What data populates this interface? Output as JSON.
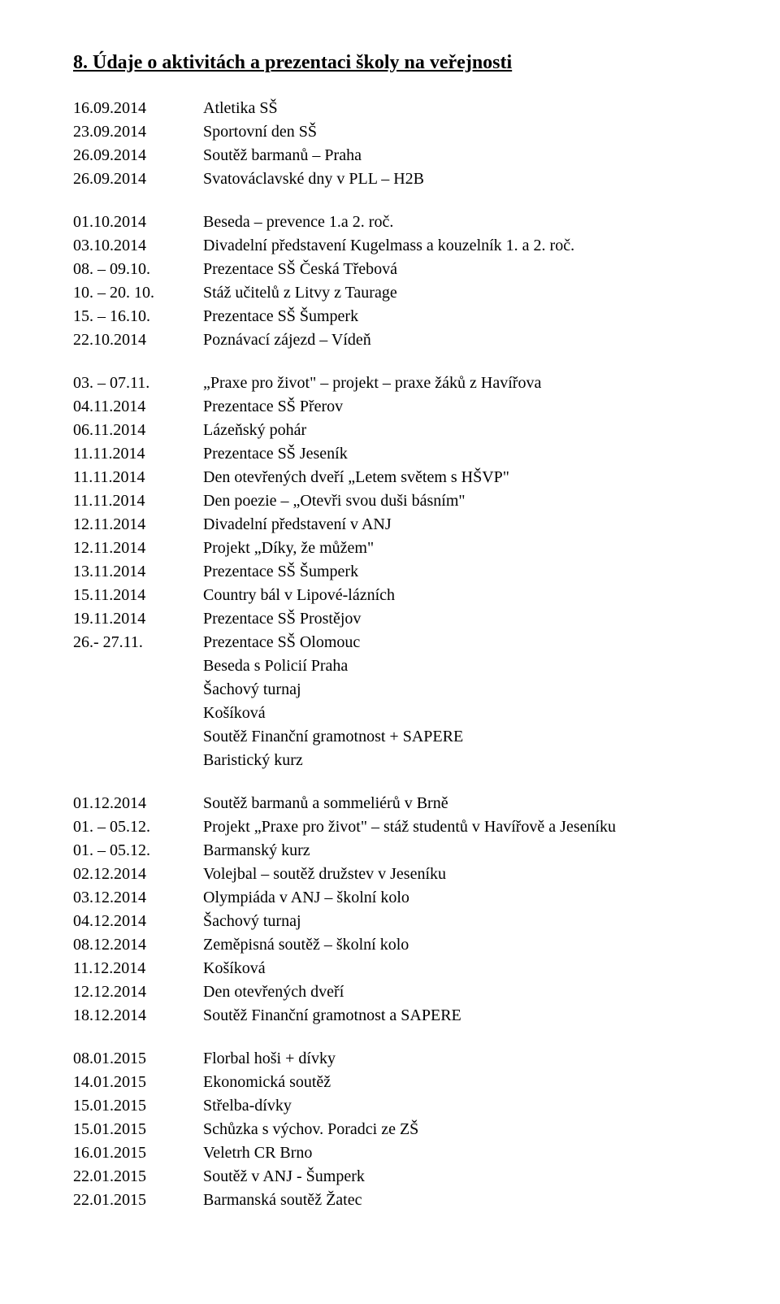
{
  "title": "8. Údaje o aktivitách a prezentaci školy na veřejnosti",
  "block1": [
    {
      "date": "16.09.2014",
      "desc": "Atletika SŠ"
    },
    {
      "date": "23.09.2014",
      "desc": "Sportovní den SŠ"
    },
    {
      "date": "26.09.2014",
      "desc": "Soutěž barmanů – Praha"
    },
    {
      "date": "26.09.2014",
      "desc": "Svatováclavské dny v PLL – H2B"
    }
  ],
  "block2": [
    {
      "date": "01.10.2014",
      "desc": "Beseda – prevence 1.a 2. roč."
    },
    {
      "date": "03.10.2014",
      "desc": "Divadelní představení Kugelmass a kouzelník 1. a 2. roč."
    },
    {
      "date": "08. – 09.10.",
      "desc": "Prezentace SŠ Česká Třebová"
    },
    {
      "date": "10. – 20. 10.",
      "desc": "Stáž učitelů z Litvy z Taurage"
    },
    {
      "date": "15. – 16.10.",
      "desc": "Prezentace SŠ Šumperk"
    },
    {
      "date": "22.10.2014",
      "desc": "Poznávací zájezd – Vídeň"
    }
  ],
  "block3": [
    {
      "date": "03. – 07.11.",
      "desc": "„Praxe pro život\" – projekt – praxe žáků z Havířova"
    },
    {
      "date": "04.11.2014",
      "desc": "Prezentace SŠ Přerov"
    },
    {
      "date": "06.11.2014",
      "desc": "Lázeňský pohár"
    },
    {
      "date": "11.11.2014",
      "desc": "Prezentace SŠ Jeseník"
    },
    {
      "date": "11.11.2014",
      "desc": "Den otevřených dveří „Letem světem s HŠVP\""
    },
    {
      "date": "11.11.2014",
      "desc": "Den poezie – „Otevři svou duši básním\""
    },
    {
      "date": "12.11.2014",
      "desc": "Divadelní představení v ANJ"
    },
    {
      "date": "12.11.2014",
      "desc": "Projekt „Díky, že můžem\""
    },
    {
      "date": "13.11.2014",
      "desc": "Prezentace SŠ Šumperk"
    },
    {
      "date": "15.11.2014",
      "desc": "Country bál v Lipové-lázních"
    },
    {
      "date": "19.11.2014",
      "desc": "Prezentace SŠ Prostějov"
    },
    {
      "date": "26.- 27.11.",
      "desc": "Prezentace SŠ Olomouc"
    }
  ],
  "block3_tail": [
    "Beseda s Policií Praha",
    "Šachový turnaj",
    "Košíková",
    "Soutěž Finanční gramotnost + SAPERE",
    "Baristický kurz"
  ],
  "block4": [
    {
      "date": "01.12.2014",
      "desc": "Soutěž barmanů a sommeliérů v Brně"
    },
    {
      "date": "01. – 05.12.",
      "desc": "Projekt „Praxe pro život\" – stáž studentů v Havířově a Jeseníku"
    },
    {
      "date": "01. – 05.12.",
      "desc": "Barmanský kurz"
    },
    {
      "date": "02.12.2014",
      "desc": "Volejbal – soutěž družstev v Jeseníku"
    },
    {
      "date": "03.12.2014",
      "desc": "Olympiáda v ANJ – školní kolo"
    },
    {
      "date": "04.12.2014",
      "desc": "Šachový turnaj"
    },
    {
      "date": "08.12.2014",
      "desc": "Zeměpisná soutěž – školní kolo"
    },
    {
      "date": "11.12.2014",
      "desc": "Košíková"
    },
    {
      "date": "12.12.2014",
      "desc": "Den otevřených dveří"
    },
    {
      "date": "18.12.2014",
      "desc": "Soutěž Finanční gramotnost a SAPERE"
    }
  ],
  "block5": [
    {
      "date": "08.01.2015",
      "desc": "Florbal hoši + dívky"
    },
    {
      "date": "14.01.2015",
      "desc": "Ekonomická soutěž"
    },
    {
      "date": "15.01.2015",
      "desc": "Střelba-dívky"
    },
    {
      "date": "15.01.2015",
      "desc": "Schůzka s výchov. Poradci ze ZŠ"
    },
    {
      "date": "16.01.2015",
      "desc": "Veletrh CR Brno"
    },
    {
      "date": "22.01.2015",
      "desc": "Soutěž v ANJ - Šumperk"
    },
    {
      "date": "22.01.2015",
      "desc": "Barmanská soutěž Žatec"
    }
  ]
}
